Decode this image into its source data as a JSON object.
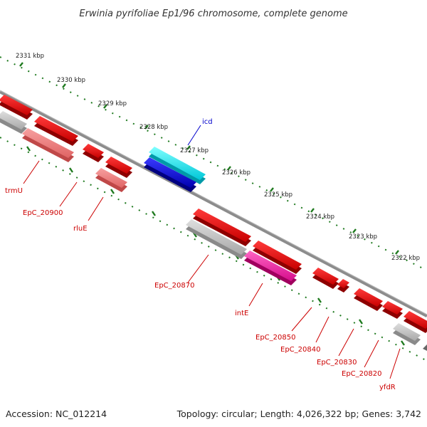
{
  "title": "Erwinia pyrifoliae Ep1/96 chromosome, complete genome",
  "footer": {
    "accession": "Accession: NC_012214",
    "topology": "Topology: circular; Length: 4,026,322 bp; Genes: 3,742"
  },
  "colors": {
    "backbone": "#8c8c8c",
    "ticks": "#1f7a1f",
    "label_red": "#cc0000",
    "label_blue": "#0000cc"
  },
  "kbp_labels": [
    "2331 kbp",
    "2330 kbp",
    "2329 kbp",
    "2328 kbp",
    "2327 kbp",
    "2326 kbp",
    "2325 kbp",
    "2324 kbp",
    "2323 kbp",
    "2322 kbp"
  ],
  "gene_labels": [
    {
      "key": "icd",
      "text": "icd",
      "color": "blue"
    },
    {
      "key": "trmU",
      "text": "trmU",
      "color": "red"
    },
    {
      "key": "epc20900",
      "text": "EpC_20900",
      "color": "red"
    },
    {
      "key": "rluE",
      "text": "rluE",
      "color": "red"
    },
    {
      "key": "epc20870",
      "text": "EpC_20870",
      "color": "red"
    },
    {
      "key": "intE",
      "text": "intE",
      "color": "red"
    },
    {
      "key": "epc20850",
      "text": "EpC_20850",
      "color": "red"
    },
    {
      "key": "epc20840",
      "text": "EpC_20840",
      "color": "red"
    },
    {
      "key": "epc20830",
      "text": "EpC_20830",
      "color": "red"
    },
    {
      "key": "epc20820",
      "text": "EpC_20820",
      "color": "red"
    },
    {
      "key": "yfdR",
      "text": "yfdR",
      "color": "red"
    }
  ]
}
